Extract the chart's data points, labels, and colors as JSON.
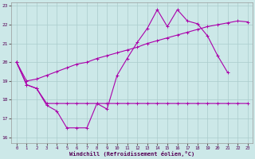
{
  "xlabel": "Windchill (Refroidissement éolien,°C)",
  "bg_color": "#cce8e8",
  "line_color": "#aa00aa",
  "grid_color": "#aacccc",
  "xmin": 0,
  "xmax": 23,
  "ymin": 16,
  "ymax": 23,
  "yticks": [
    16,
    17,
    18,
    19,
    20,
    21,
    22,
    23
  ],
  "xticks": [
    0,
    1,
    2,
    3,
    4,
    5,
    6,
    7,
    8,
    9,
    10,
    11,
    12,
    13,
    14,
    15,
    16,
    17,
    18,
    19,
    20,
    21,
    22,
    23
  ],
  "line1_x": [
    0,
    1,
    2,
    3,
    4,
    5,
    6,
    7,
    8,
    9,
    10,
    11,
    12,
    13,
    14,
    15,
    16,
    17,
    18,
    19,
    20,
    21,
    22
  ],
  "line1_y": [
    20.0,
    18.8,
    18.6,
    17.7,
    17.4,
    16.5,
    16.5,
    16.5,
    17.8,
    17.5,
    19.3,
    20.2,
    21.05,
    21.8,
    22.8,
    21.9,
    22.8,
    22.2,
    22.05,
    21.4,
    20.35,
    19.45,
    null
  ],
  "line2_x": [
    0,
    1,
    2,
    3,
    4,
    5,
    6,
    7,
    8,
    9,
    10,
    11,
    12,
    13,
    14,
    15,
    16,
    17,
    18,
    19,
    20,
    21,
    22,
    23
  ],
  "line2_y": [
    20.0,
    18.8,
    18.6,
    17.8,
    17.8,
    17.8,
    17.8,
    17.8,
    17.8,
    17.8,
    17.8,
    17.8,
    17.8,
    17.8,
    17.8,
    17.8,
    17.8,
    17.8,
    17.8,
    17.8,
    17.8,
    17.8,
    17.8,
    17.8
  ],
  "line3_x": [
    0,
    1,
    2,
    3,
    4,
    5,
    6,
    7,
    8,
    9,
    10,
    11,
    12,
    13,
    14,
    15,
    16,
    17,
    18,
    19,
    20,
    21,
    22,
    23
  ],
  "line3_y": [
    20.0,
    19.0,
    19.1,
    19.3,
    19.5,
    19.7,
    19.9,
    20.0,
    20.2,
    20.35,
    20.5,
    20.65,
    20.8,
    21.0,
    21.15,
    21.3,
    21.45,
    21.6,
    21.75,
    21.9,
    22.0,
    22.1,
    22.2,
    22.15
  ]
}
